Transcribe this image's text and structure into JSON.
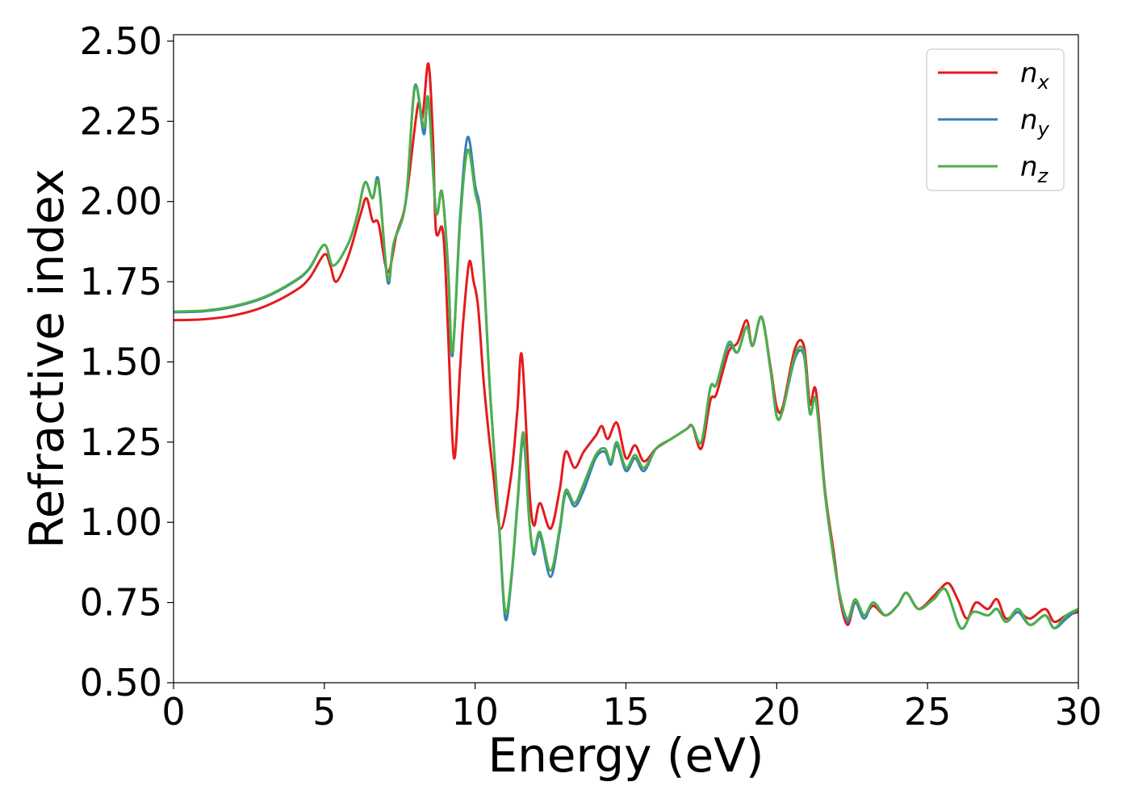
{
  "chart_data": {
    "type": "line",
    "title": "",
    "xlabel": "Energy (eV)",
    "ylabel": "Refractive index",
    "xlim": [
      0,
      30
    ],
    "ylim": [
      0.5,
      2.52
    ],
    "xticks": [
      0,
      5,
      10,
      15,
      20,
      25,
      30
    ],
    "xtick_labels": [
      "0",
      "5",
      "10",
      "15",
      "20",
      "25",
      "30"
    ],
    "yticks": [
      0.5,
      0.75,
      1.0,
      1.25,
      1.5,
      1.75,
      2.0,
      2.25,
      2.5
    ],
    "ytick_labels": [
      "0.50",
      "0.75",
      "1.00",
      "1.25",
      "1.50",
      "1.75",
      "2.00",
      "2.25",
      "2.50"
    ],
    "grid": false,
    "legend_position": "top-right",
    "series": [
      {
        "name": "n_x",
        "legend_main": "n",
        "legend_sub": "x",
        "color": "#e41a1c",
        "points": [
          [
            0,
            1.63
          ],
          [
            1,
            1.633
          ],
          [
            2,
            1.645
          ],
          [
            3,
            1.672
          ],
          [
            4,
            1.72
          ],
          [
            4.5,
            1.76
          ],
          [
            5,
            1.835
          ],
          [
            5.2,
            1.8
          ],
          [
            5.4,
            1.75
          ],
          [
            5.8,
            1.83
          ],
          [
            6.2,
            1.96
          ],
          [
            6.4,
            2.01
          ],
          [
            6.6,
            1.94
          ],
          [
            6.8,
            1.93
          ],
          [
            7.1,
            1.78
          ],
          [
            7.4,
            1.9
          ],
          [
            7.7,
            2.0
          ],
          [
            8.1,
            2.3
          ],
          [
            8.25,
            2.26
          ],
          [
            8.45,
            2.43
          ],
          [
            8.6,
            2.2
          ],
          [
            8.7,
            1.91
          ],
          [
            8.9,
            1.92
          ],
          [
            9.0,
            1.82
          ],
          [
            9.1,
            1.6
          ],
          [
            9.3,
            1.2
          ],
          [
            9.5,
            1.48
          ],
          [
            9.6,
            1.62
          ],
          [
            9.8,
            1.81
          ],
          [
            9.95,
            1.75
          ],
          [
            10.1,
            1.67
          ],
          [
            10.3,
            1.42
          ],
          [
            10.6,
            1.15
          ],
          [
            10.85,
            0.98
          ],
          [
            11.2,
            1.15
          ],
          [
            11.4,
            1.35
          ],
          [
            11.55,
            1.52
          ],
          [
            11.8,
            1.1
          ],
          [
            11.95,
            0.99
          ],
          [
            12.15,
            1.06
          ],
          [
            12.5,
            0.98
          ],
          [
            12.8,
            1.1
          ],
          [
            13.0,
            1.22
          ],
          [
            13.3,
            1.17
          ],
          [
            13.6,
            1.22
          ],
          [
            14.0,
            1.27
          ],
          [
            14.2,
            1.3
          ],
          [
            14.4,
            1.26
          ],
          [
            14.7,
            1.31
          ],
          [
            15.0,
            1.2
          ],
          [
            15.3,
            1.24
          ],
          [
            15.6,
            1.19
          ],
          [
            16.0,
            1.23
          ],
          [
            16.5,
            1.26
          ],
          [
            17.0,
            1.29
          ],
          [
            17.2,
            1.3
          ],
          [
            17.5,
            1.23
          ],
          [
            17.8,
            1.38
          ],
          [
            18.0,
            1.4
          ],
          [
            18.4,
            1.53
          ],
          [
            18.7,
            1.56
          ],
          [
            19.0,
            1.63
          ],
          [
            19.2,
            1.55
          ],
          [
            19.5,
            1.64
          ],
          [
            19.8,
            1.48
          ],
          [
            20.0,
            1.36
          ],
          [
            20.2,
            1.36
          ],
          [
            20.6,
            1.54
          ],
          [
            20.9,
            1.55
          ],
          [
            21.1,
            1.37
          ],
          [
            21.3,
            1.41
          ],
          [
            21.6,
            1.1
          ],
          [
            21.9,
            0.9
          ],
          [
            22.1,
            0.76
          ],
          [
            22.35,
            0.68
          ],
          [
            22.6,
            0.75
          ],
          [
            22.9,
            0.71
          ],
          [
            23.2,
            0.74
          ],
          [
            23.6,
            0.71
          ],
          [
            24.0,
            0.74
          ],
          [
            24.3,
            0.78
          ],
          [
            24.7,
            0.73
          ],
          [
            25.2,
            0.77
          ],
          [
            25.4,
            0.79
          ],
          [
            25.7,
            0.81
          ],
          [
            26.0,
            0.76
          ],
          [
            26.3,
            0.7
          ],
          [
            26.6,
            0.75
          ],
          [
            27.0,
            0.73
          ],
          [
            27.3,
            0.76
          ],
          [
            27.6,
            0.7
          ],
          [
            28.0,
            0.72
          ],
          [
            28.4,
            0.7
          ],
          [
            28.9,
            0.73
          ],
          [
            29.2,
            0.69
          ],
          [
            29.6,
            0.71
          ],
          [
            30.0,
            0.72
          ]
        ]
      },
      {
        "name": "n_y",
        "legend_main": "n",
        "legend_sub": "y",
        "color": "#377eb8",
        "points": [
          [
            0,
            1.655
          ],
          [
            1,
            1.658
          ],
          [
            2,
            1.672
          ],
          [
            3,
            1.7
          ],
          [
            4,
            1.75
          ],
          [
            4.5,
            1.79
          ],
          [
            5,
            1.865
          ],
          [
            5.3,
            1.8
          ],
          [
            5.8,
            1.87
          ],
          [
            6.1,
            1.96
          ],
          [
            6.35,
            2.06
          ],
          [
            6.6,
            2.01
          ],
          [
            6.8,
            2.065
          ],
          [
            7.1,
            1.75
          ],
          [
            7.3,
            1.87
          ],
          [
            7.7,
            2.0
          ],
          [
            8.0,
            2.36
          ],
          [
            8.3,
            2.21
          ],
          [
            8.45,
            2.32
          ],
          [
            8.7,
            1.97
          ],
          [
            8.9,
            2.03
          ],
          [
            9.1,
            1.8
          ],
          [
            9.25,
            1.52
          ],
          [
            9.5,
            1.95
          ],
          [
            9.75,
            2.2
          ],
          [
            10.0,
            2.05
          ],
          [
            10.2,
            1.93
          ],
          [
            10.5,
            1.4
          ],
          [
            10.8,
            0.98
          ],
          [
            11.0,
            0.7
          ],
          [
            11.2,
            0.82
          ],
          [
            11.4,
            1.05
          ],
          [
            11.6,
            1.26
          ],
          [
            11.8,
            1.0
          ],
          [
            11.95,
            0.9
          ],
          [
            12.15,
            0.96
          ],
          [
            12.5,
            0.83
          ],
          [
            12.8,
            0.97
          ],
          [
            13.0,
            1.09
          ],
          [
            13.3,
            1.05
          ],
          [
            13.6,
            1.1
          ],
          [
            14.0,
            1.2
          ],
          [
            14.3,
            1.22
          ],
          [
            14.5,
            1.18
          ],
          [
            14.7,
            1.24
          ],
          [
            15.0,
            1.16
          ],
          [
            15.3,
            1.2
          ],
          [
            15.6,
            1.16
          ],
          [
            16.0,
            1.23
          ],
          [
            16.5,
            1.26
          ],
          [
            17.0,
            1.29
          ],
          [
            17.2,
            1.3
          ],
          [
            17.5,
            1.25
          ],
          [
            17.8,
            1.42
          ],
          [
            18.0,
            1.43
          ],
          [
            18.4,
            1.55
          ],
          [
            18.7,
            1.53
          ],
          [
            19.0,
            1.61
          ],
          [
            19.2,
            1.55
          ],
          [
            19.5,
            1.64
          ],
          [
            19.8,
            1.47
          ],
          [
            20.0,
            1.33
          ],
          [
            20.2,
            1.35
          ],
          [
            20.6,
            1.51
          ],
          [
            20.9,
            1.52
          ],
          [
            21.1,
            1.34
          ],
          [
            21.3,
            1.38
          ],
          [
            21.6,
            1.09
          ],
          [
            21.9,
            0.88
          ],
          [
            22.1,
            0.77
          ],
          [
            22.35,
            0.69
          ],
          [
            22.6,
            0.75
          ],
          [
            22.9,
            0.7
          ],
          [
            23.2,
            0.75
          ],
          [
            23.6,
            0.71
          ],
          [
            24.0,
            0.74
          ],
          [
            24.3,
            0.78
          ],
          [
            24.7,
            0.73
          ],
          [
            25.2,
            0.76
          ],
          [
            25.6,
            0.79
          ],
          [
            26.1,
            0.67
          ],
          [
            26.5,
            0.72
          ],
          [
            27.0,
            0.71
          ],
          [
            27.3,
            0.73
          ],
          [
            27.6,
            0.69
          ],
          [
            28.0,
            0.72
          ],
          [
            28.4,
            0.68
          ],
          [
            28.9,
            0.71
          ],
          [
            29.2,
            0.67
          ],
          [
            29.6,
            0.7
          ],
          [
            30.0,
            0.73
          ]
        ]
      },
      {
        "name": "n_z",
        "legend_main": "n",
        "legend_sub": "z",
        "color": "#4daf4a",
        "points": [
          [
            0,
            1.657
          ],
          [
            1,
            1.66
          ],
          [
            2,
            1.674
          ],
          [
            3,
            1.702
          ],
          [
            4,
            1.752
          ],
          [
            4.5,
            1.792
          ],
          [
            5,
            1.865
          ],
          [
            5.3,
            1.8
          ],
          [
            5.8,
            1.87
          ],
          [
            6.1,
            1.96
          ],
          [
            6.35,
            2.06
          ],
          [
            6.6,
            2.01
          ],
          [
            6.8,
            2.055
          ],
          [
            7.1,
            1.76
          ],
          [
            7.3,
            1.87
          ],
          [
            7.7,
            2.0
          ],
          [
            8.0,
            2.355
          ],
          [
            8.3,
            2.23
          ],
          [
            8.45,
            2.32
          ],
          [
            8.7,
            1.97
          ],
          [
            8.9,
            2.03
          ],
          [
            9.1,
            1.8
          ],
          [
            9.25,
            1.53
          ],
          [
            9.5,
            1.93
          ],
          [
            9.75,
            2.16
          ],
          [
            10.0,
            2.03
          ],
          [
            10.2,
            1.91
          ],
          [
            10.5,
            1.4
          ],
          [
            10.8,
            0.98
          ],
          [
            11.0,
            0.72
          ],
          [
            11.2,
            0.83
          ],
          [
            11.4,
            1.06
          ],
          [
            11.6,
            1.28
          ],
          [
            11.8,
            1.0
          ],
          [
            11.95,
            0.91
          ],
          [
            12.15,
            0.97
          ],
          [
            12.5,
            0.85
          ],
          [
            12.8,
            0.98
          ],
          [
            13.0,
            1.1
          ],
          [
            13.3,
            1.06
          ],
          [
            13.6,
            1.12
          ],
          [
            14.0,
            1.21
          ],
          [
            14.3,
            1.23
          ],
          [
            14.5,
            1.19
          ],
          [
            14.7,
            1.25
          ],
          [
            15.0,
            1.17
          ],
          [
            15.3,
            1.21
          ],
          [
            15.6,
            1.17
          ],
          [
            16.0,
            1.23
          ],
          [
            16.5,
            1.26
          ],
          [
            17.0,
            1.29
          ],
          [
            17.2,
            1.3
          ],
          [
            17.5,
            1.25
          ],
          [
            17.8,
            1.42
          ],
          [
            18.0,
            1.43
          ],
          [
            18.4,
            1.56
          ],
          [
            18.7,
            1.53
          ],
          [
            19.0,
            1.61
          ],
          [
            19.2,
            1.55
          ],
          [
            19.5,
            1.64
          ],
          [
            19.8,
            1.47
          ],
          [
            20.0,
            1.33
          ],
          [
            20.2,
            1.35
          ],
          [
            20.6,
            1.52
          ],
          [
            20.9,
            1.53
          ],
          [
            21.1,
            1.34
          ],
          [
            21.3,
            1.38
          ],
          [
            21.6,
            1.09
          ],
          [
            21.9,
            0.88
          ],
          [
            22.1,
            0.77
          ],
          [
            22.35,
            0.7
          ],
          [
            22.6,
            0.76
          ],
          [
            22.9,
            0.71
          ],
          [
            23.2,
            0.75
          ],
          [
            23.6,
            0.71
          ],
          [
            24.0,
            0.74
          ],
          [
            24.3,
            0.78
          ],
          [
            24.7,
            0.73
          ],
          [
            25.2,
            0.76
          ],
          [
            25.6,
            0.79
          ],
          [
            26.1,
            0.67
          ],
          [
            26.5,
            0.72
          ],
          [
            27.0,
            0.71
          ],
          [
            27.3,
            0.73
          ],
          [
            27.6,
            0.69
          ],
          [
            28.0,
            0.73
          ],
          [
            28.4,
            0.68
          ],
          [
            28.9,
            0.71
          ],
          [
            29.2,
            0.67
          ],
          [
            29.6,
            0.71
          ],
          [
            30.0,
            0.73
          ]
        ]
      }
    ]
  }
}
